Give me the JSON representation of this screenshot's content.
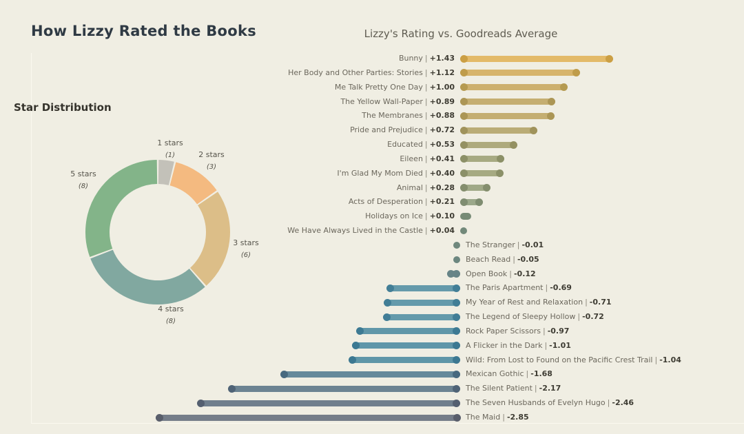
{
  "page": {
    "title": "How Lizzy Rated the Books",
    "title_color": "#2f3a44",
    "background": "#f0eee3",
    "panel_border_color": "#fbf9f0"
  },
  "chart_data": [
    {
      "type": "pie",
      "title": "Star Distribution",
      "donut": true,
      "start_angle_deg": 0,
      "direction": "clockwise",
      "legend_position": "outside-labels",
      "categories": [
        "1 stars",
        "2 stars",
        "3 stars",
        "4 stars",
        "5 stars"
      ],
      "values": [
        1,
        3,
        6,
        8,
        8
      ],
      "colors": [
        "#c3c1b9",
        "#f4ba80",
        "#dcbe88",
        "#81a8a0",
        "#83b489"
      ]
    },
    {
      "type": "bar",
      "orientation": "horizontal-diverging",
      "title": "Lizzy's Rating vs. Goodreads Average",
      "value_description": "Lizzy's rating minus Goodreads average",
      "xlim": [
        -2.85,
        1.43
      ],
      "grid": false,
      "items": [
        {
          "label": "Bunny",
          "value": 1.43,
          "display": "+1.43",
          "color": "#e3ba69",
          "dot_color": "#cb9f44"
        },
        {
          "label": "Her Body and Other Parties: Stories",
          "value": 1.12,
          "display": "+1.12",
          "color": "#d7b46b",
          "dot_color": "#bf9c4a"
        },
        {
          "label": "Me Talk Pretty One Day",
          "value": 1.0,
          "display": "+1.00",
          "color": "#cdb06e",
          "dot_color": "#b59a50"
        },
        {
          "label": "The Yellow Wall-Paper",
          "value": 0.89,
          "display": "+0.89",
          "color": "#c5ae71",
          "dot_color": "#ac9655"
        },
        {
          "label": "The Membranes",
          "value": 0.88,
          "display": "+0.88",
          "color": "#c4ae71",
          "dot_color": "#ab9655"
        },
        {
          "label": "Pride and Prejudice",
          "value": 0.72,
          "display": "+0.72",
          "color": "#baac76",
          "dot_color": "#a0935b"
        },
        {
          "label": "Educated",
          "value": 0.53,
          "display": "+0.53",
          "color": "#aeaa7d",
          "dot_color": "#949162"
        },
        {
          "label": "Eileen",
          "value": 0.41,
          "display": "+0.41",
          "color": "#a7aa82",
          "dot_color": "#8c9067"
        },
        {
          "label": "I'm Glad My Mom Died",
          "value": 0.4,
          "display": "+0.40",
          "color": "#a6aa82",
          "dot_color": "#8b9068"
        },
        {
          "label": "Animal",
          "value": 0.28,
          "display": "+0.28",
          "color": "#a0a987",
          "dot_color": "#848e6d"
        },
        {
          "label": "Acts of Desperation",
          "value": 0.21,
          "display": "+0.21",
          "color": "#9ba88a",
          "dot_color": "#7f8d71"
        },
        {
          "label": "Holidays on Ice",
          "value": 0.1,
          "display": "+0.10",
          "color": "#95a78f",
          "dot_color": "#778b76"
        },
        {
          "label": "We Have Always Lived in the Castle",
          "value": 0.04,
          "display": "+0.04",
          "color": "#90a591",
          "dot_color": "#72897a"
        },
        {
          "label": "The Stranger",
          "value": -0.01,
          "display": "-0.01",
          "color": "#8ea494",
          "dot_color": "#6f887d"
        },
        {
          "label": "Beach Read",
          "value": -0.05,
          "display": "-0.05",
          "color": "#8ba496",
          "dot_color": "#6c8780"
        },
        {
          "label": "Open Book",
          "value": -0.12,
          "display": "-0.12",
          "color": "#86a29a",
          "dot_color": "#678487"
        },
        {
          "label": "The Paris Apartment",
          "value": -0.69,
          "display": "-0.69",
          "color": "#659aab",
          "dot_color": "#427e96"
        },
        {
          "label": "My Year of Rest and Relaxation",
          "value": -0.71,
          "display": "-0.71",
          "color": "#649aab",
          "dot_color": "#417e96"
        },
        {
          "label": "The Legend of Sleepy Hollow",
          "value": -0.72,
          "display": "-0.72",
          "color": "#649aab",
          "dot_color": "#417d96"
        },
        {
          "label": "Rock Paper Scissors",
          "value": -0.97,
          "display": "-0.97",
          "color": "#6097a9",
          "dot_color": "#3d7a93"
        },
        {
          "label": "A Flicker in the Dark",
          "value": -1.01,
          "display": "-1.01",
          "color": "#5f96a9",
          "dot_color": "#3c7992"
        },
        {
          "label": "Wild: From Lost to Found on the Pacific Crest Trail",
          "value": -1.04,
          "display": "-1.04",
          "color": "#5f96a8",
          "dot_color": "#3c7891"
        },
        {
          "label": "Mexican Gothic",
          "value": -1.68,
          "display": "-1.68",
          "color": "#65899b",
          "dot_color": "#47697f"
        },
        {
          "label": "The Silent Patient",
          "value": -2.17,
          "display": "-2.17",
          "color": "#6c8392",
          "dot_color": "#4f6376"
        },
        {
          "label": "The Seven Husbands of Evelyn Hugo",
          "value": -2.46,
          "display": "-2.46",
          "color": "#707f8d",
          "dot_color": "#545f70"
        },
        {
          "label": "The Maid",
          "value": -2.85,
          "display": "-2.85",
          "color": "#757d89",
          "dot_color": "#595e6b"
        }
      ]
    }
  ]
}
